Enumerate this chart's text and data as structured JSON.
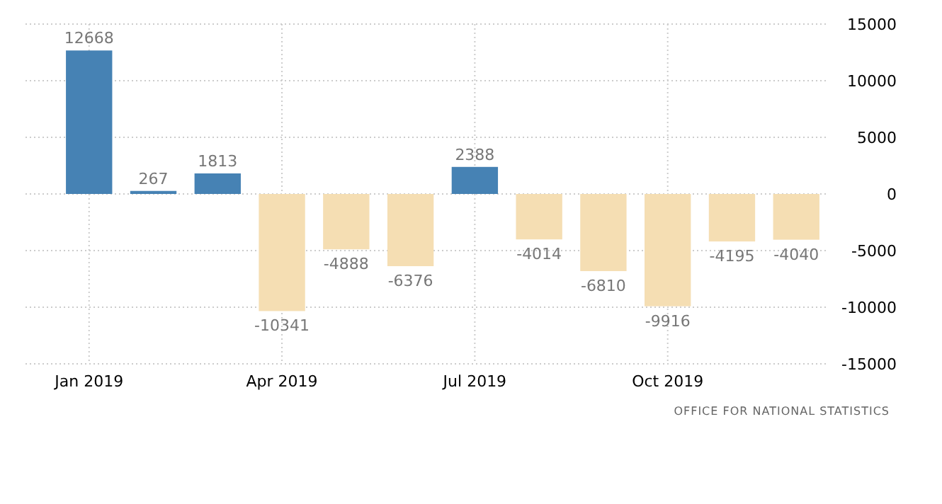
{
  "chart_data": {
    "type": "bar",
    "categories": [
      "Jan 2019",
      null,
      null,
      "Apr 2019",
      null,
      null,
      "Jul 2019",
      null,
      null,
      "Oct 2019",
      null,
      null
    ],
    "values": [
      12668,
      267,
      1813,
      -10341,
      -4888,
      -6376,
      2388,
      -4014,
      -6810,
      -9916,
      -4195,
      -4040
    ],
    "colors": [
      "#4682b4",
      "#4682b4",
      "#4682b4",
      "#f5deb3",
      "#f5deb3",
      "#f5deb3",
      "#4682b4",
      "#f5deb3",
      "#f5deb3",
      "#f5deb3",
      "#f5deb3",
      "#f5deb3"
    ],
    "ylim": [
      -15000,
      15000
    ],
    "yticks": [
      -15000,
      -10000,
      -5000,
      0,
      5000,
      10000,
      15000
    ],
    "grid": true,
    "data_labels": true,
    "annotations": [
      "OFFICE FOR NATIONAL STATISTICS"
    ]
  }
}
